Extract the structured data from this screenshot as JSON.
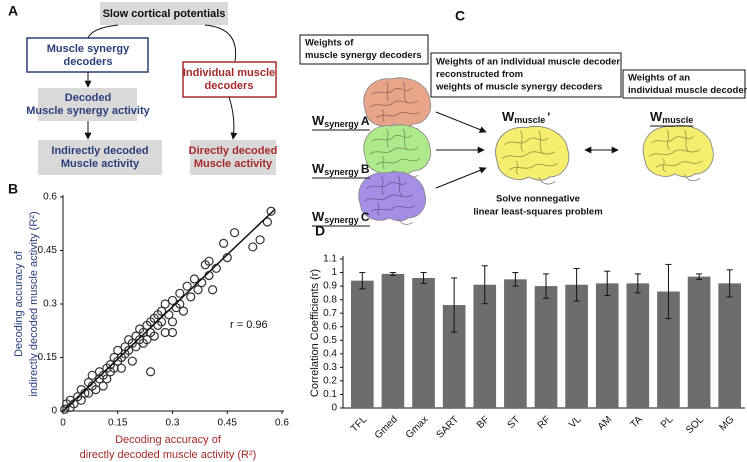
{
  "panel_labels": [
    "A",
    "B",
    "C",
    "D"
  ],
  "flowchart": {
    "nodes": [
      {
        "lines": [
          "Slow cortical potentials"
        ]
      },
      {
        "lines": [
          "Muscle synergy",
          "decoders"
        ]
      },
      {
        "lines": [
          "Decoded",
          "Muscle synergy activity"
        ]
      },
      {
        "lines": [
          "Indirectly decoded",
          "Muscle activity"
        ]
      },
      {
        "lines": [
          "Individual muscle",
          "decoders"
        ]
      },
      {
        "lines": [
          "Directly decoded",
          "Muscle activity"
        ]
      }
    ]
  },
  "diagram": {
    "boxes": [
      {
        "lines": [
          "Weights of",
          "muscle synergy decoders"
        ]
      },
      {
        "lines": [
          "Weights of an individual muscle decoder",
          "reconstructed from",
          "weights of muscle synergy decoders"
        ]
      },
      {
        "lines": [
          "Weights of an",
          "individual muscle decoder"
        ]
      }
    ],
    "weights": [
      {
        "symbol": "W",
        "subscript": "synergy",
        "suffix": "A"
      },
      {
        "symbol": "W",
        "subscript": "synergy",
        "suffix": "B"
      },
      {
        "symbol": "W",
        "subscript": "synergy",
        "suffix": "C"
      },
      {
        "symbol": "W",
        "subscript": "muscle",
        "suffix": "'"
      },
      {
        "symbol": "W",
        "subscript": "muscle"
      }
    ],
    "note": [
      "Solve nonnegative",
      "linear least-squares problem"
    ]
  },
  "chart_data": [
    {
      "type": "scatter",
      "xlabel": [
        "Decoding accuracy of",
        "directly decoded muscle activity (R²)"
      ],
      "ylabel": [
        "Decoding accuracy of",
        "indirectly decoded muscle activity (R²)"
      ],
      "annotation": "r = 0.96",
      "color": "#333333",
      "x": [
        0.005,
        0.01,
        0.02,
        0.02,
        0.03,
        0.04,
        0.05,
        0.05,
        0.06,
        0.07,
        0.07,
        0.08,
        0.08,
        0.09,
        0.1,
        0.1,
        0.11,
        0.11,
        0.12,
        0.12,
        0.13,
        0.13,
        0.14,
        0.14,
        0.15,
        0.15,
        0.16,
        0.16,
        0.17,
        0.17,
        0.18,
        0.18,
        0.19,
        0.19,
        0.2,
        0.2,
        0.21,
        0.21,
        0.22,
        0.22,
        0.23,
        0.23,
        0.24,
        0.24,
        0.25,
        0.25,
        0.26,
        0.26,
        0.27,
        0.27,
        0.28,
        0.28,
        0.29,
        0.3,
        0.3,
        0.31,
        0.32,
        0.32,
        0.33,
        0.34,
        0.35,
        0.36,
        0.37,
        0.38,
        0.39,
        0.4,
        0.4,
        0.41,
        0.42,
        0.44,
        0.45,
        0.47,
        0.52,
        0.54,
        0.56,
        0.57,
        0.24,
        0.3
      ],
      "y": [
        0.005,
        0.02,
        0.01,
        0.03,
        0.02,
        0.04,
        0.03,
        0.06,
        0.05,
        0.08,
        0.05,
        0.07,
        0.1,
        0.06,
        0.09,
        0.11,
        0.1,
        0.07,
        0.12,
        0.09,
        0.13,
        0.11,
        0.12,
        0.15,
        0.14,
        0.17,
        0.15,
        0.12,
        0.18,
        0.16,
        0.17,
        0.2,
        0.19,
        0.14,
        0.21,
        0.18,
        0.2,
        0.23,
        0.22,
        0.19,
        0.24,
        0.2,
        0.25,
        0.22,
        0.26,
        0.21,
        0.27,
        0.24,
        0.28,
        0.25,
        0.3,
        0.22,
        0.27,
        0.31,
        0.25,
        0.29,
        0.33,
        0.3,
        0.28,
        0.35,
        0.32,
        0.37,
        0.34,
        0.36,
        0.41,
        0.38,
        0.42,
        0.34,
        0.4,
        0.47,
        0.43,
        0.5,
        0.46,
        0.48,
        0.53,
        0.56,
        0.11,
        0.22
      ],
      "fit": {
        "x": [
          0,
          0.58
        ],
        "y": [
          0,
          0.565
        ]
      },
      "xlim": [
        0,
        0.6
      ],
      "ylim": [
        0,
        0.6
      ],
      "xticks": [
        0,
        0.15,
        0.3,
        0.45,
        0.6
      ],
      "yticks": [
        0,
        0.15,
        0.3,
        0.45,
        0.6
      ]
    },
    {
      "type": "bar",
      "ylabel": "Correlation Coefficients (r)",
      "categories": [
        "TFL",
        "Gmed",
        "Gmax",
        "SART",
        "BF",
        "ST",
        "RF",
        "VL",
        "AM",
        "TA",
        "PL",
        "SOL",
        "MG"
      ],
      "values": [
        0.94,
        0.99,
        0.96,
        0.76,
        0.91,
        0.95,
        0.9,
        0.91,
        0.92,
        0.92,
        0.86,
        0.97,
        0.92
      ],
      "errors": [
        0.06,
        0.01,
        0.04,
        0.2,
        0.14,
        0.05,
        0.09,
        0.12,
        0.09,
        0.07,
        0.2,
        0.02,
        0.1
      ],
      "color": "#6d6d6d",
      "ylim": [
        0,
        1.1
      ],
      "yticks": [
        0,
        0.1,
        0.2,
        0.3,
        0.4,
        0.5,
        0.6,
        0.7,
        0.8,
        0.9,
        1,
        1.1
      ]
    }
  ]
}
